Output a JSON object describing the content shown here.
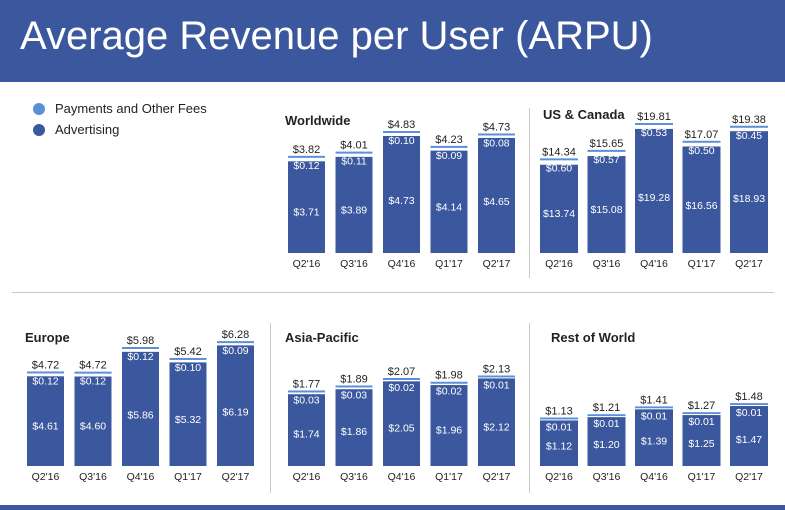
{
  "title": "Average Revenue per User (ARPU)",
  "colors": {
    "advertising": "#3b579d",
    "payments": "#5b8fd8",
    "header": "#3b579d"
  },
  "legend": [
    {
      "label": "Payments and Other Fees",
      "color": "#5b8fd8"
    },
    {
      "label": "Advertising",
      "color": "#3b579d"
    }
  ],
  "chart_data": [
    {
      "type": "bar",
      "stacked": true,
      "title": "Worldwide",
      "categories": [
        "Q2'16",
        "Q3'16",
        "Q4'16",
        "Q1'17",
        "Q2'17"
      ],
      "totals": [
        "$3.82",
        "$4.01",
        "$4.83",
        "$4.23",
        "$4.73"
      ],
      "series": [
        {
          "name": "Advertising",
          "values": [
            3.71,
            3.89,
            4.73,
            4.14,
            4.65
          ],
          "labels": [
            "$3.71",
            "$3.89",
            "$4.73",
            "$4.14",
            "$4.65"
          ]
        },
        {
          "name": "Payments and Other Fees",
          "values": [
            0.12,
            0.11,
            0.1,
            0.09,
            0.08
          ],
          "labels": [
            "$0.12",
            "$0.11",
            "$0.10",
            "$0.09",
            "$0.08"
          ]
        }
      ]
    },
    {
      "type": "bar",
      "stacked": true,
      "title": "US & Canada",
      "categories": [
        "Q2'16",
        "Q3'16",
        "Q4'16",
        "Q1'17",
        "Q2'17"
      ],
      "totals": [
        "$14.34",
        "$15.65",
        "$19.81",
        "$17.07",
        "$19.38"
      ],
      "series": [
        {
          "name": "Advertising",
          "values": [
            13.74,
            15.08,
            19.28,
            16.56,
            18.93
          ],
          "labels": [
            "$13.74",
            "$15.08",
            "$19.28",
            "$16.56",
            "$18.93"
          ]
        },
        {
          "name": "Payments and Other Fees",
          "values": [
            0.6,
            0.57,
            0.53,
            0.5,
            0.45
          ],
          "labels": [
            "$0.60",
            "$0.57",
            "$0.53",
            "$0.50",
            "$0.45"
          ]
        }
      ]
    },
    {
      "type": "bar",
      "stacked": true,
      "title": "Europe",
      "categories": [
        "Q2'16",
        "Q3'16",
        "Q4'16",
        "Q1'17",
        "Q2'17"
      ],
      "totals": [
        "$4.72",
        "$4.72",
        "$5.98",
        "$5.42",
        "$6.28"
      ],
      "series": [
        {
          "name": "Advertising",
          "values": [
            4.61,
            4.6,
            5.86,
            5.32,
            6.19
          ],
          "labels": [
            "$4.61",
            "$4.60",
            "$5.86",
            "$5.32",
            "$6.19"
          ]
        },
        {
          "name": "Payments and Other Fees",
          "values": [
            0.12,
            0.12,
            0.12,
            0.1,
            0.09
          ],
          "labels": [
            "$0.12",
            "$0.12",
            "$0.12",
            "$0.10",
            "$0.09"
          ]
        }
      ]
    },
    {
      "type": "bar",
      "stacked": true,
      "title": "Asia-Pacific",
      "categories": [
        "Q2'16",
        "Q3'16",
        "Q4'16",
        "Q1'17",
        "Q2'17"
      ],
      "totals": [
        "$1.77",
        "$1.89",
        "$2.07",
        "$1.98",
        "$2.13"
      ],
      "series": [
        {
          "name": "Advertising",
          "values": [
            1.74,
            1.86,
            2.05,
            1.96,
            2.12
          ],
          "labels": [
            "$1.74",
            "$1.86",
            "$2.05",
            "$1.96",
            "$2.12"
          ]
        },
        {
          "name": "Payments and Other Fees",
          "values": [
            0.03,
            0.03,
            0.02,
            0.02,
            0.01
          ],
          "labels": [
            "$0.03",
            "$0.03",
            "$0.02",
            "$0.02",
            "$0.01"
          ]
        }
      ]
    },
    {
      "type": "bar",
      "stacked": true,
      "title": "Rest of World",
      "categories": [
        "Q2'16",
        "Q3'16",
        "Q4'16",
        "Q1'17",
        "Q2'17"
      ],
      "totals": [
        "$1.13",
        "$1.21",
        "$1.41",
        "$1.27",
        "$1.48"
      ],
      "series": [
        {
          "name": "Advertising",
          "values": [
            1.12,
            1.2,
            1.39,
            1.25,
            1.47
          ],
          "labels": [
            "$1.12",
            "$1.20",
            "$1.39",
            "$1.25",
            "$1.47"
          ]
        },
        {
          "name": "Payments and Other Fees",
          "values": [
            0.01,
            0.01,
            0.01,
            0.01,
            0.01
          ],
          "labels": [
            "$0.01",
            "$0.01",
            "$0.01",
            "$0.01",
            "$0.01"
          ]
        }
      ]
    }
  ]
}
